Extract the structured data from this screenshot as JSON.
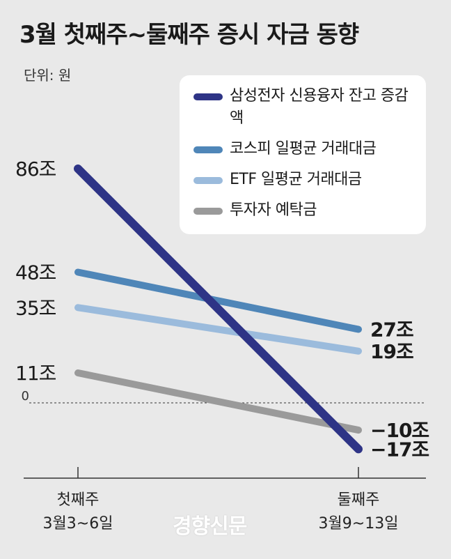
{
  "title": "3월 첫째주~둘째주 증시 자금 동향",
  "unit_label": "단위: 원",
  "watermark": "경향신문",
  "chart_data": {
    "type": "line",
    "title": "3월 첫째주~둘째주 증시 자금 동향",
    "unit": "단위: 원",
    "x": [
      {
        "name": "첫째주",
        "range": "3월3~6일"
      },
      {
        "name": "둘째주",
        "range": "3월9~13일"
      }
    ],
    "zero_label": "0",
    "ylim": [
      -22,
      92
    ],
    "series": [
      {
        "name": "삼성전자 신용융자 잔고 증감액",
        "values": [
          86,
          -17
        ],
        "labels": [
          "86조",
          "−17조"
        ],
        "color": "#2e3486"
      },
      {
        "name": "코스피 일평균 거래대금",
        "values": [
          48,
          27
        ],
        "labels": [
          "48조",
          "27조"
        ],
        "color": "#4f86b8"
      },
      {
        "name": "ETF 일평균 거래대금",
        "values": [
          35,
          19
        ],
        "labels": [
          "35조",
          "19조"
        ],
        "color": "#9bbbdc"
      },
      {
        "name": "투자자 예탁금",
        "values": [
          11,
          -10
        ],
        "labels": [
          "11조",
          "−10조"
        ],
        "color": "#9a9a9a"
      }
    ]
  }
}
